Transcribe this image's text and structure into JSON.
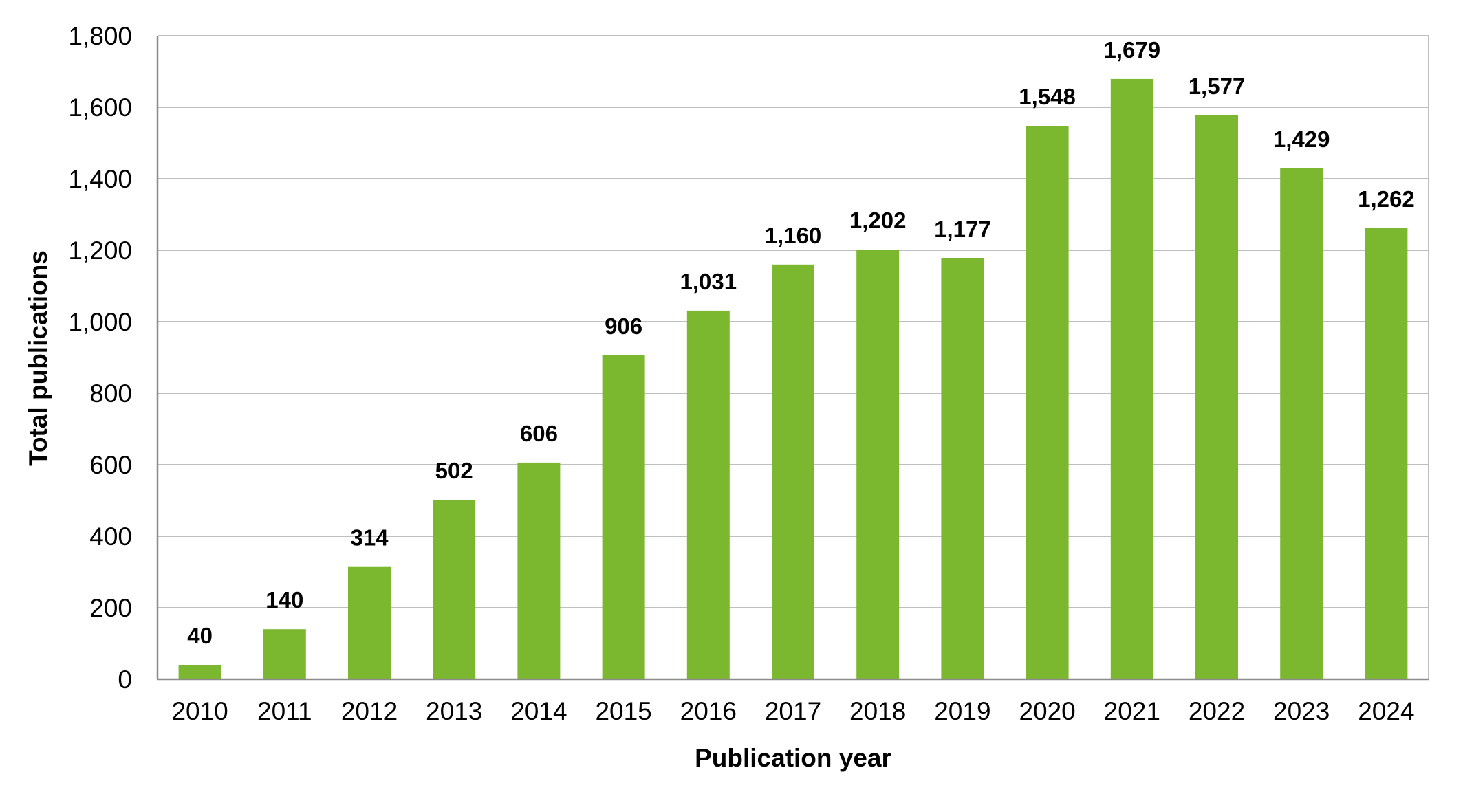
{
  "chart_data": {
    "type": "bar",
    "title": "",
    "xlabel": "Publication year",
    "ylabel": "Total publications",
    "categories": [
      "2010",
      "2011",
      "2012",
      "2013",
      "2014",
      "2015",
      "2016",
      "2017",
      "2018",
      "2019",
      "2020",
      "2021",
      "2022",
      "2023",
      "2024"
    ],
    "values": [
      40,
      140,
      314,
      502,
      606,
      906,
      1031,
      1160,
      1202,
      1177,
      1548,
      1679,
      1577,
      1429,
      1262
    ],
    "data_labels": [
      "40",
      "140",
      "314",
      "502",
      "606",
      "906",
      "1,031",
      "1,160",
      "1,202",
      "1,177",
      "1,548",
      "1,679",
      "1,577",
      "1,429",
      "1,262"
    ],
    "ylim": [
      0,
      1800
    ],
    "yticks": [
      0,
      200,
      400,
      600,
      800,
      1000,
      1200,
      1400,
      1600,
      1800
    ],
    "ytick_labels": [
      "0",
      "200",
      "400",
      "600",
      "800",
      "1,000",
      "1,200",
      "1,400",
      "1,600",
      "1,800"
    ],
    "grid": "horizontal",
    "legend": "none",
    "bar_color": "#7cb82f"
  }
}
